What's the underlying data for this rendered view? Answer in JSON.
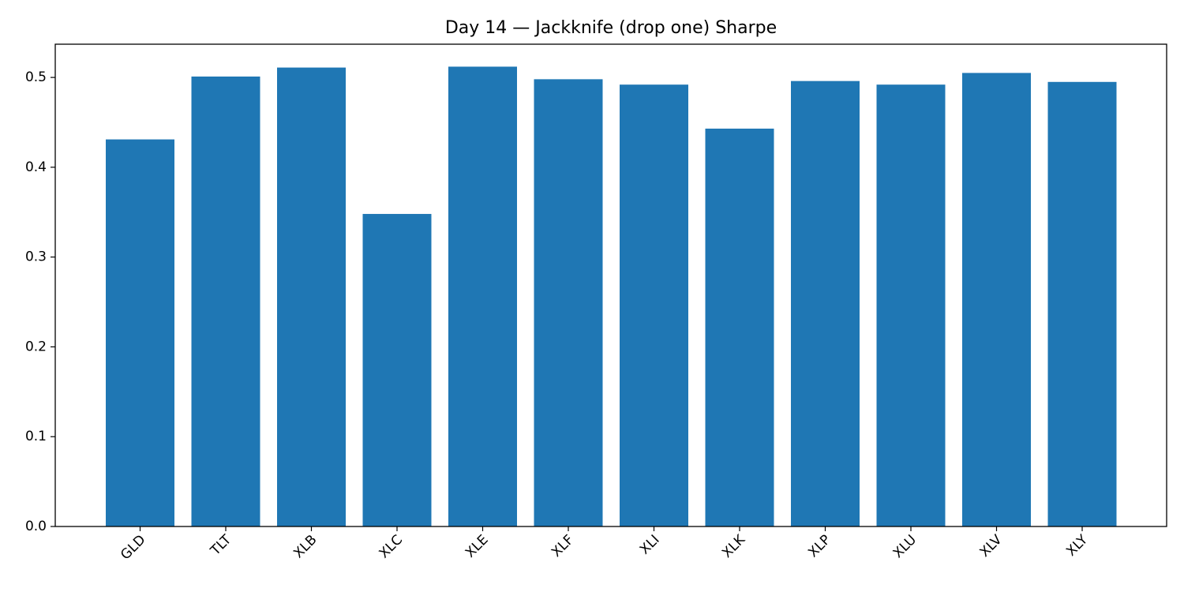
{
  "chart_data": {
    "type": "bar",
    "title": "Day 14 — Jackknife (drop one) Sharpe",
    "xlabel": "",
    "ylabel": "",
    "categories": [
      "GLD",
      "TLT",
      "XLB",
      "XLC",
      "XLE",
      "XLF",
      "XLI",
      "XLK",
      "XLP",
      "XLU",
      "XLV",
      "XLY"
    ],
    "values": [
      0.431,
      0.501,
      0.511,
      0.348,
      0.512,
      0.498,
      0.492,
      0.443,
      0.496,
      0.492,
      0.505,
      0.495
    ],
    "ylim": [
      0,
      0.537
    ],
    "yticks": [
      0.0,
      0.1,
      0.2,
      0.3,
      0.4,
      0.5
    ],
    "ytick_labels": [
      "0.0",
      "0.1",
      "0.2",
      "0.3",
      "0.4",
      "0.5"
    ],
    "grid": false,
    "legend": "none",
    "bar_color": "#1f77b4"
  }
}
